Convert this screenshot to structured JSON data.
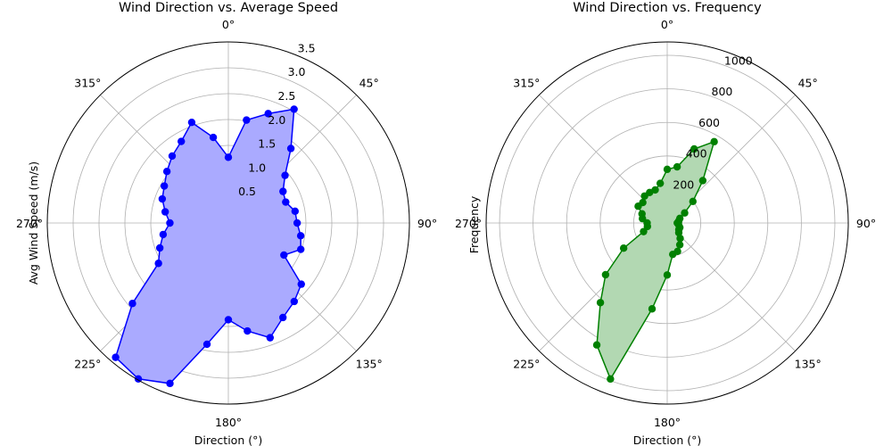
{
  "chart_data": [
    {
      "type": "polar-line",
      "title": "Wind Direction vs. Average Speed",
      "xlabel": "Direction (°)",
      "ylabel": "Avg Wind Speed (m/s)",
      "angle_ticks": [
        "0°",
        "45°",
        "90°",
        "135°",
        "180°",
        "225°",
        "270°",
        "315°"
      ],
      "radial_ticks": [
        "0.5",
        "1.0",
        "1.5",
        "2.0",
        "2.5",
        "3.0",
        "3.5"
      ],
      "radial_tick_values": [
        0.5,
        1.0,
        1.5,
        2.0,
        2.5,
        3.0,
        3.5
      ],
      "rlim": [
        0,
        3.5
      ],
      "grid": true,
      "color": "#0000ff",
      "fill_color": "#aaaaff",
      "series": [
        {
          "directions": [
            0,
            10,
            20,
            30,
            40,
            50,
            60,
            70,
            80,
            90,
            100,
            110,
            120,
            130,
            140,
            150,
            160,
            170,
            180,
            190,
            200,
            210,
            220,
            230,
            240,
            250,
            260,
            270,
            280,
            290,
            300,
            310,
            320,
            330,
            340,
            350
          ],
          "values": [
            1.27,
            2.02,
            2.25,
            2.54,
            1.88,
            1.43,
            1.22,
            1.18,
            1.31,
            1.33,
            1.42,
            1.49,
            1.24,
            1.84,
            1.98,
            2.11,
            2.36,
            2.12,
            1.87,
            2.38,
            3.3,
            3.48,
            3.39,
            2.42,
            1.56,
            1.41,
            1.28,
            1.13,
            1.24,
            1.36,
            1.43,
            1.55,
            1.69,
            1.82,
            2.07,
            1.68
          ]
        }
      ]
    },
    {
      "type": "polar-line",
      "title": "Wind Direction vs. Frequency",
      "xlabel": "Direction (°)",
      "ylabel": "Frequency",
      "angle_ticks": [
        "0°",
        "45°",
        "90°",
        "135°",
        "180°",
        "225°",
        "270°",
        "315°"
      ],
      "radial_ticks": [
        "200",
        "400",
        "600",
        "800",
        "1000"
      ],
      "radial_tick_values": [
        200,
        400,
        600,
        800,
        1000
      ],
      "rlim": [
        0,
        1080
      ],
      "grid": true,
      "color": "#008000",
      "fill_color": "#b2d8b2",
      "series": [
        {
          "directions": [
            0,
            10,
            20,
            30,
            40,
            50,
            60,
            70,
            80,
            90,
            100,
            110,
            120,
            130,
            140,
            150,
            160,
            170,
            180,
            190,
            200,
            210,
            220,
            230,
            240,
            250,
            260,
            270,
            280,
            290,
            300,
            310,
            320,
            330,
            340,
            350
          ],
          "values": [
            320,
            340,
            470,
            560,
            330,
            200,
            120,
            80,
            70,
            60,
            70,
            80,
            80,
            90,
            120,
            150,
            180,
            190,
            310,
            520,
            990,
            840,
            620,
            480,
            300,
            150,
            120,
            120,
            150,
            160,
            200,
            190,
            210,
            210,
            210,
            240
          ]
        }
      ]
    }
  ]
}
